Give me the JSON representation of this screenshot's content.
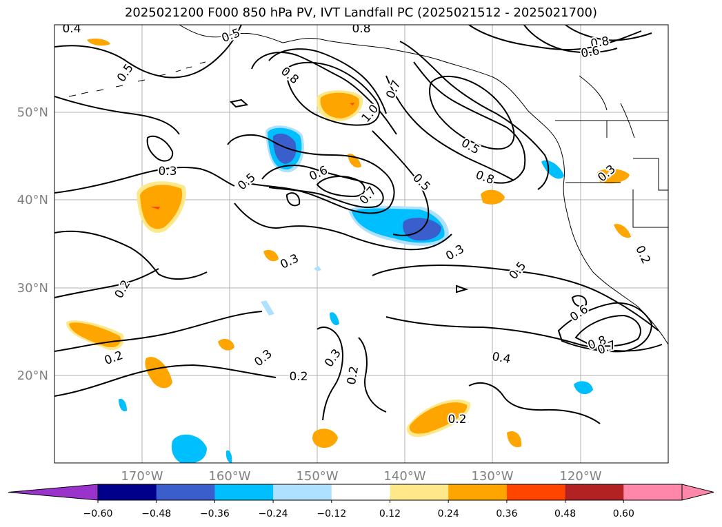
{
  "title": "2025021200 F000 850 hPa PV, IVT Landfall PC (2025021512 - 2025021700)",
  "map": {
    "lon_labels": [
      "170°W",
      "160°W",
      "150°W",
      "140°W",
      "130°W",
      "120°W"
    ],
    "lat_labels": [
      "50°N",
      "40°N",
      "30°N",
      "20°N"
    ],
    "grid": true,
    "axis_label_color": "#808080"
  },
  "contour_labels": [
    "0.4",
    "0.5",
    "0.8",
    "0.8",
    "0.6",
    "0.5",
    "0.8",
    "1.0",
    "0.7",
    "0.5",
    "0.3",
    "0.5",
    "0.6",
    "0.7",
    "0.5",
    "0.8",
    "0.3",
    "0.3",
    "0.3",
    "0.2",
    "0.5",
    "0.6",
    "0.8",
    "0.7",
    "0.2",
    "0.2",
    "0.3",
    "0.2",
    "0.3",
    "0.2",
    "0.4",
    "0.2"
  ],
  "colorbar": {
    "ticks": [
      "−0.60",
      "−0.48",
      "−0.36",
      "−0.24",
      "−0.12",
      "0.12",
      "0.24",
      "0.36",
      "0.48",
      "0.60"
    ],
    "colors": [
      "#9933cc",
      "#00008b",
      "#3a5fcd",
      "#00bfff",
      "#aee0ff",
      "#ffffff",
      "#ffe88a",
      "#ffa500",
      "#ff4500",
      "#b22222",
      "#ff88aa"
    ]
  }
}
